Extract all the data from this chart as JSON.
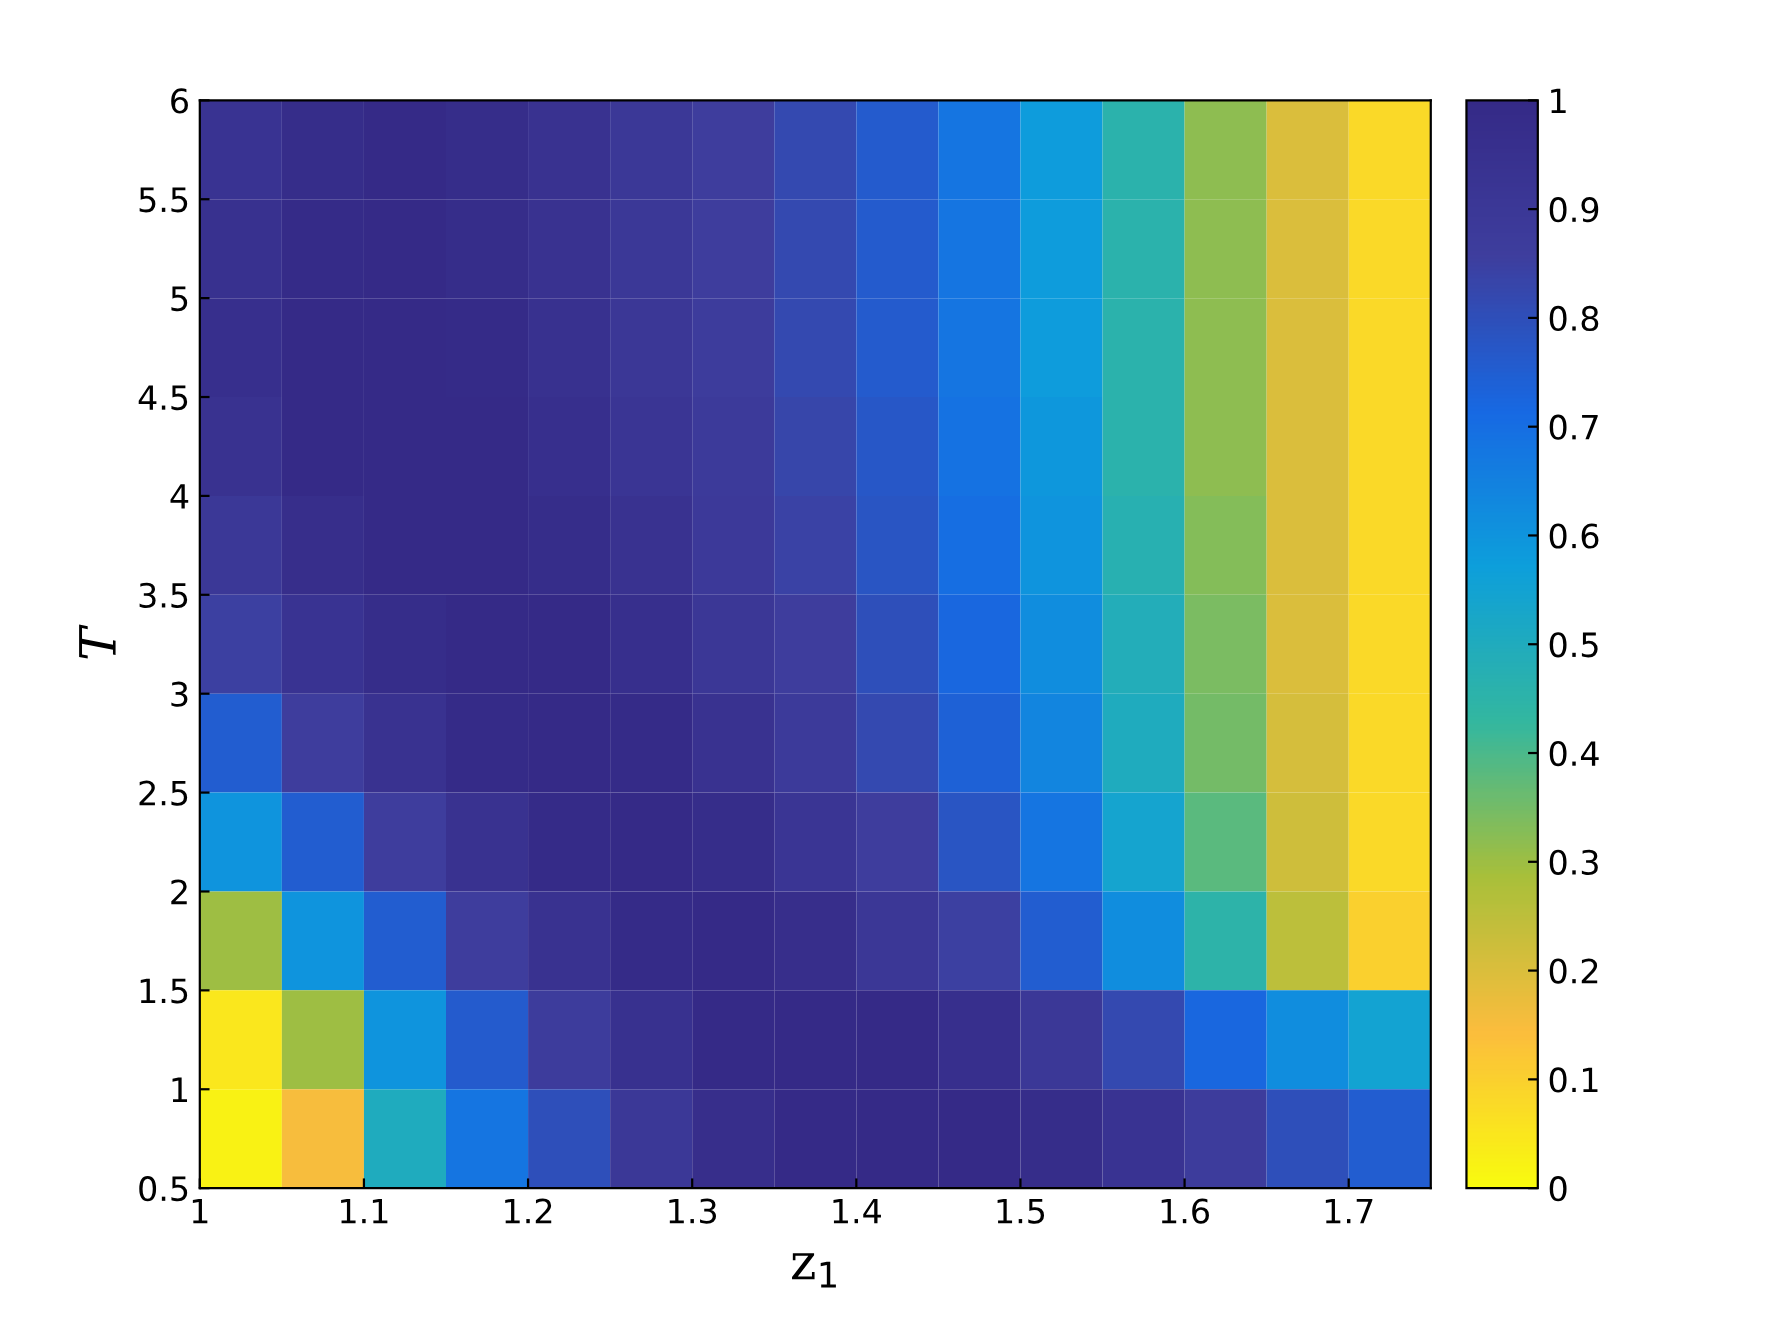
{
  "chart_data": {
    "type": "heatmap",
    "xlabel": "z$_{1}$",
    "ylabel": "T",
    "x": [
      1.025,
      1.075,
      1.125,
      1.175,
      1.225,
      1.275,
      1.325,
      1.375,
      1.425,
      1.475,
      1.525,
      1.575,
      1.625,
      1.675,
      1.725
    ],
    "y": [
      5.75,
      5.25,
      4.75,
      4.25,
      3.75,
      3.25,
      2.75,
      2.25,
      1.75,
      1.25,
      0.75
    ],
    "xlim": [
      1,
      1.75
    ],
    "xticks": [
      1,
      1.1,
      1.2,
      1.3,
      1.4,
      1.5,
      1.6,
      1.7
    ],
    "ylim": [
      0.5,
      6
    ],
    "yticks": [
      0.5,
      1,
      1.5,
      2,
      2.5,
      3,
      3.5,
      4,
      4.5,
      5,
      5.5,
      6
    ],
    "clim": [
      0,
      1
    ],
    "cticks": [
      0,
      0.1,
      0.2,
      0.3,
      0.4,
      0.5,
      0.6,
      0.7,
      0.8,
      0.9,
      1
    ],
    "colors": [
      "#f9fb0e",
      "#fbbd3d",
      "#a8bf3a",
      "#33b7a0",
      "#0d9fdb",
      "#1769e3",
      "#3e3e9e",
      "#352a87"
    ],
    "grid": false,
    "cells": [
      [
        0.93,
        0.98,
        1,
        0.98,
        0.94,
        0.9,
        0.86,
        0.82,
        0.76,
        0.68,
        0.58,
        0.46,
        0.32,
        0.2,
        0.08
      ],
      [
        0.95,
        0.99,
        1,
        0.98,
        0.94,
        0.9,
        0.86,
        0.82,
        0.76,
        0.68,
        0.58,
        0.46,
        0.32,
        0.2,
        0.08
      ],
      [
        0.96,
        1,
        1,
        0.99,
        0.95,
        0.91,
        0.87,
        0.82,
        0.76,
        0.68,
        0.58,
        0.46,
        0.32,
        0.2,
        0.08
      ],
      [
        0.94,
        1,
        1,
        1,
        0.96,
        0.92,
        0.88,
        0.83,
        0.77,
        0.69,
        0.59,
        0.46,
        0.32,
        0.2,
        0.08
      ],
      [
        0.9,
        0.97,
        1,
        1,
        0.98,
        0.94,
        0.89,
        0.84,
        0.78,
        0.7,
        0.6,
        0.47,
        0.33,
        0.2,
        0.08
      ],
      [
        0.85,
        0.93,
        0.98,
        1,
        1,
        0.96,
        0.91,
        0.86,
        0.8,
        0.72,
        0.62,
        0.49,
        0.34,
        0.2,
        0.08
      ],
      [
        0.75,
        0.86,
        0.94,
        0.99,
        1,
        0.99,
        0.94,
        0.88,
        0.82,
        0.74,
        0.64,
        0.5,
        0.35,
        0.21,
        0.08
      ],
      [
        0.6,
        0.75,
        0.86,
        0.94,
        0.99,
        1,
        0.98,
        0.92,
        0.86,
        0.78,
        0.68,
        0.54,
        0.38,
        0.22,
        0.08
      ],
      [
        0.3,
        0.6,
        0.75,
        0.86,
        0.94,
        0.99,
        1,
        0.97,
        0.91,
        0.85,
        0.75,
        0.62,
        0.45,
        0.25,
        0.1
      ],
      [
        0.05,
        0.3,
        0.6,
        0.76,
        0.87,
        0.95,
        1,
        1,
        1,
        0.96,
        0.9,
        0.82,
        0.72,
        0.62,
        0.55
      ],
      [
        0.02,
        0.15,
        0.5,
        0.68,
        0.8,
        0.9,
        0.97,
        1,
        1,
        1,
        0.98,
        0.93,
        0.87,
        0.8,
        0.75
      ]
    ]
  }
}
